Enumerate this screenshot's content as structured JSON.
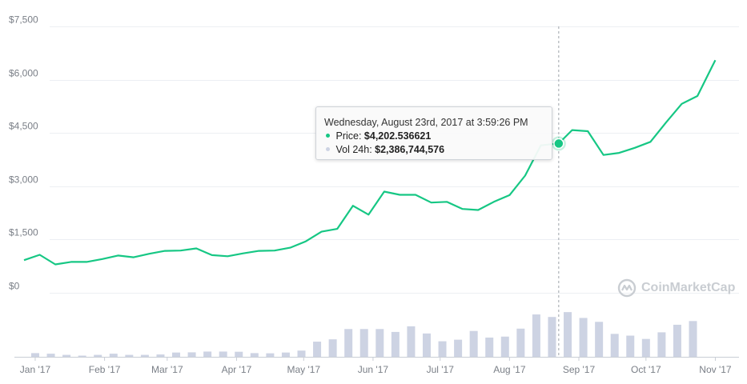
{
  "chart_data": {
    "type": "line",
    "y_ticks": [
      "$7,500",
      "$6,000",
      "$4,500",
      "$3,000",
      "$1,500",
      "$0"
    ],
    "y_tick_values": [
      7500,
      6000,
      4500,
      3000,
      1500,
      0
    ],
    "ylim": [
      0,
      7500
    ],
    "x_ticks": [
      "Jan '17",
      "Feb '17",
      "Mar '17",
      "Apr '17",
      "May '17",
      "Jun '17",
      "Jul '17",
      "Aug '17",
      "Sep '17",
      "Oct '17",
      "Nov '17"
    ],
    "x_tick_dates": [
      "2017-01-01",
      "2017-02-01",
      "2017-03-01",
      "2017-04-01",
      "2017-05-01",
      "2017-06-01",
      "2017-07-01",
      "2017-08-01",
      "2017-09-01",
      "2017-10-01",
      "2017-11-01"
    ],
    "xlim": [
      "2016-12-27",
      "2017-11-08"
    ],
    "grid": true,
    "series": [
      {
        "name": "Price",
        "color": "#16c784",
        "points": [
          [
            "2016-12-27",
            920
          ],
          [
            "2017-01-03",
            1070
          ],
          [
            "2017-01-10",
            800
          ],
          [
            "2017-01-17",
            870
          ],
          [
            "2017-01-24",
            870
          ],
          [
            "2017-01-31",
            950
          ],
          [
            "2017-02-07",
            1050
          ],
          [
            "2017-02-14",
            1000
          ],
          [
            "2017-02-21",
            1100
          ],
          [
            "2017-02-28",
            1180
          ],
          [
            "2017-03-07",
            1190
          ],
          [
            "2017-03-14",
            1250
          ],
          [
            "2017-03-21",
            1060
          ],
          [
            "2017-03-28",
            1030
          ],
          [
            "2017-04-04",
            1110
          ],
          [
            "2017-04-11",
            1180
          ],
          [
            "2017-04-18",
            1190
          ],
          [
            "2017-04-25",
            1270
          ],
          [
            "2017-05-02",
            1450
          ],
          [
            "2017-05-09",
            1720
          ],
          [
            "2017-05-16",
            1800
          ],
          [
            "2017-05-23",
            2450
          ],
          [
            "2017-05-30",
            2200
          ],
          [
            "2017-06-06",
            2850
          ],
          [
            "2017-06-13",
            2760
          ],
          [
            "2017-06-20",
            2760
          ],
          [
            "2017-06-27",
            2540
          ],
          [
            "2017-07-04",
            2560
          ],
          [
            "2017-07-11",
            2360
          ],
          [
            "2017-07-18",
            2330
          ],
          [
            "2017-07-25",
            2560
          ],
          [
            "2017-08-01",
            2750
          ],
          [
            "2017-08-08",
            3300
          ],
          [
            "2017-08-15",
            4150
          ],
          [
            "2017-08-23",
            4202.54
          ],
          [
            "2017-08-29",
            4580
          ],
          [
            "2017-09-05",
            4550
          ],
          [
            "2017-09-12",
            3880
          ],
          [
            "2017-09-19",
            3940
          ],
          [
            "2017-09-26",
            4080
          ],
          [
            "2017-10-03",
            4250
          ],
          [
            "2017-10-10",
            4800
          ],
          [
            "2017-10-17",
            5320
          ],
          [
            "2017-10-24",
            5540
          ],
          [
            "2017-11-01",
            6550
          ]
        ]
      },
      {
        "name": "Vol 24h",
        "type": "bar",
        "color": "#cdd3e3",
        "max": 2800000000,
        "points": [
          [
            "2017-01-01",
            190000000
          ],
          [
            "2017-01-08",
            160000000
          ],
          [
            "2017-01-15",
            100000000
          ],
          [
            "2017-01-22",
            60000000
          ],
          [
            "2017-01-29",
            100000000
          ],
          [
            "2017-02-05",
            160000000
          ],
          [
            "2017-02-12",
            100000000
          ],
          [
            "2017-02-19",
            100000000
          ],
          [
            "2017-02-26",
            120000000
          ],
          [
            "2017-03-05",
            220000000
          ],
          [
            "2017-03-12",
            230000000
          ],
          [
            "2017-03-19",
            270000000
          ],
          [
            "2017-03-26",
            270000000
          ],
          [
            "2017-04-02",
            260000000
          ],
          [
            "2017-04-09",
            190000000
          ],
          [
            "2017-04-16",
            180000000
          ],
          [
            "2017-04-23",
            220000000
          ],
          [
            "2017-04-30",
            320000000
          ],
          [
            "2017-05-07",
            780000000
          ],
          [
            "2017-05-14",
            900000000
          ],
          [
            "2017-05-21",
            1430000000
          ],
          [
            "2017-05-28",
            1430000000
          ],
          [
            "2017-06-04",
            1430000000
          ],
          [
            "2017-06-11",
            1280000000
          ],
          [
            "2017-06-18",
            1570000000
          ],
          [
            "2017-06-25",
            1200000000
          ],
          [
            "2017-07-02",
            800000000
          ],
          [
            "2017-07-09",
            880000000
          ],
          [
            "2017-07-16",
            1330000000
          ],
          [
            "2017-07-23",
            990000000
          ],
          [
            "2017-07-30",
            1040000000
          ],
          [
            "2017-08-06",
            1450000000
          ],
          [
            "2017-08-13",
            2180000000
          ],
          [
            "2017-08-20",
            2050000000
          ],
          [
            "2017-08-27",
            2300000000
          ],
          [
            "2017-09-03",
            2000000000
          ],
          [
            "2017-09-10",
            1800000000
          ],
          [
            "2017-09-17",
            1180000000
          ],
          [
            "2017-09-24",
            1090000000
          ],
          [
            "2017-10-01",
            920000000
          ],
          [
            "2017-10-08",
            1260000000
          ],
          [
            "2017-10-15",
            1650000000
          ],
          [
            "2017-10-22",
            1840000000
          ]
        ]
      }
    ],
    "highlight": {
      "date": "2017-08-23",
      "price": 4202.536621
    }
  },
  "tooltip": {
    "title": "Wednesday, August 23rd, 2017 at 3:59:26 PM",
    "price_label": "Price:",
    "price_value": "$4,202.536621",
    "volume_label": "Vol 24h:",
    "volume_value": "$2,386,744,576"
  },
  "branding": {
    "name": "CoinMarketCap",
    "icon": "coinmarketcap-logo-icon"
  }
}
